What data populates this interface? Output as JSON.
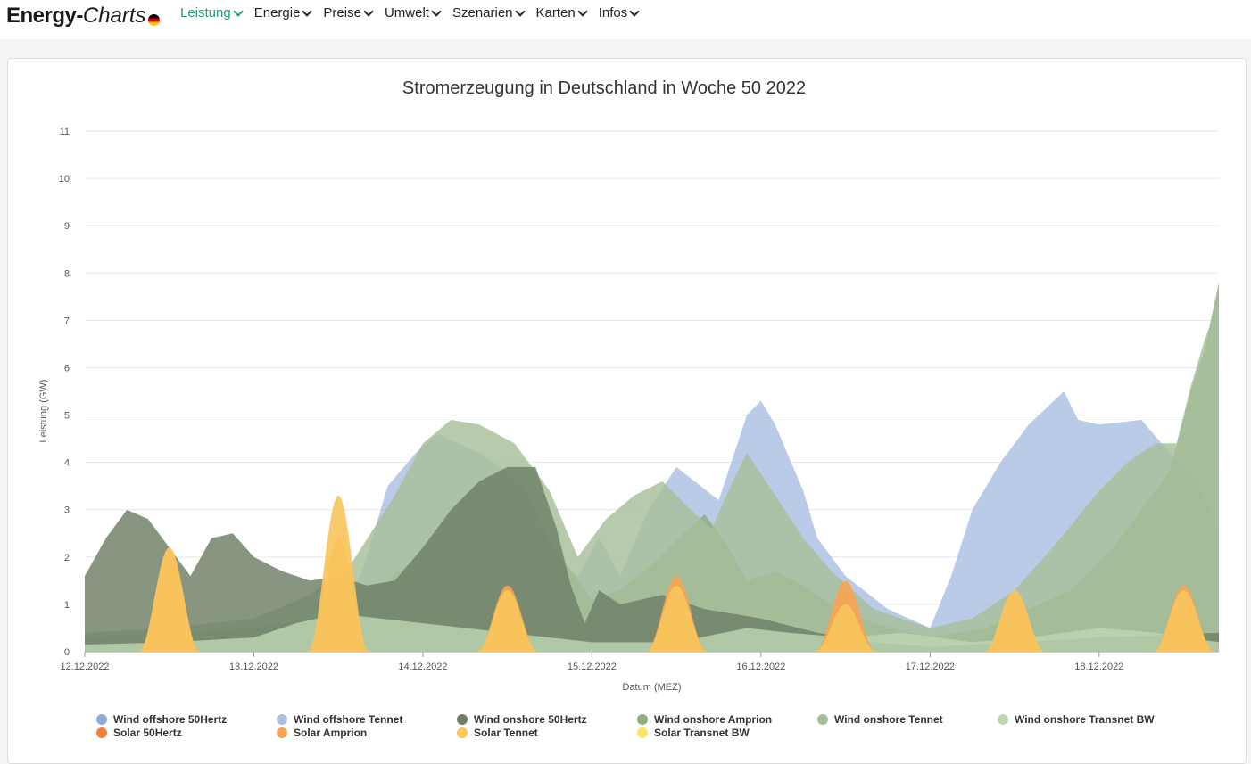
{
  "header": {
    "logo_part1": "Energy-",
    "logo_part2": "Charts",
    "nav": [
      {
        "label": "Leistung",
        "active": true
      },
      {
        "label": "Energie",
        "active": false
      },
      {
        "label": "Preise",
        "active": false
      },
      {
        "label": "Umwelt",
        "active": false
      },
      {
        "label": "Szenarien",
        "active": false
      },
      {
        "label": "Karten",
        "active": false
      },
      {
        "label": "Infos",
        "active": false
      }
    ]
  },
  "chart_data": {
    "type": "area",
    "title": "Stromerzeugung in Deutschland in Woche 50 2022",
    "xlabel": "Datum (MEZ)",
    "ylabel": "Leistung (GW)",
    "ylim": [
      0,
      11
    ],
    "yticks": [
      0,
      1,
      2,
      3,
      4,
      5,
      6,
      7,
      8,
      9,
      10,
      11
    ],
    "xlim": [
      "12.12.2022 00:00",
      "18.12.2022 17:00"
    ],
    "xticks": [
      "12.12.2022",
      "13.12.2022",
      "14.12.2022",
      "15.12.2022",
      "16.12.2022",
      "17.12.2022",
      "18.12.2022"
    ],
    "grid": true,
    "legend_position": "bottom",
    "series": [
      {
        "name": "Wind offshore 50Hertz",
        "color": "#8fabdc",
        "legend_only": true,
        "points": []
      },
      {
        "name": "Wind offshore Tennet",
        "color": "#a9c0e0",
        "points": [
          [
            "12.12.2022 00:00",
            0
          ],
          [
            "13.12.2022 12:00",
            0.3
          ],
          [
            "13.12.2022 16:00",
            2.0
          ],
          [
            "13.12.2022 19:00",
            3.5
          ],
          [
            "13.12.2022 23:00",
            4.2
          ],
          [
            "14.12.2022 02:00",
            4.6
          ],
          [
            "14.12.2022 08:00",
            4.2
          ],
          [
            "14.12.2022 14:00",
            3.6
          ],
          [
            "14.12.2022 19:00",
            2.0
          ],
          [
            "14.12.2022 22:00",
            1.6
          ],
          [
            "15.12.2022 01:00",
            2.4
          ],
          [
            "15.12.2022 04:00",
            1.6
          ],
          [
            "15.12.2022 08:00",
            3.0
          ],
          [
            "15.12.2022 12:00",
            3.9
          ],
          [
            "15.12.2022 18:00",
            3.2
          ],
          [
            "15.12.2022 20:00",
            4.1
          ],
          [
            "15.12.2022 22:00",
            5.0
          ],
          [
            "16.12.2022 00:00",
            5.3
          ],
          [
            "16.12.2022 02:00",
            4.8
          ],
          [
            "16.12.2022 06:00",
            3.4
          ],
          [
            "16.12.2022 08:00",
            2.4
          ],
          [
            "16.12.2022 12:00",
            1.6
          ],
          [
            "16.12.2022 18:00",
            0.9
          ],
          [
            "17.12.2022 00:00",
            0.5
          ],
          [
            "17.12.2022 03:00",
            1.6
          ],
          [
            "17.12.2022 06:00",
            3.0
          ],
          [
            "17.12.2022 10:00",
            4.0
          ],
          [
            "17.12.2022 14:00",
            4.8
          ],
          [
            "17.12.2022 19:00",
            5.5
          ],
          [
            "17.12.2022 21:00",
            4.9
          ],
          [
            "18.12.2022 00:00",
            4.8
          ],
          [
            "18.12.2022 06:00",
            4.9
          ],
          [
            "18.12.2022 10:00",
            4.2
          ],
          [
            "18.12.2022 14:00",
            3.6
          ],
          [
            "18.12.2022 17:00",
            2.6
          ]
        ]
      },
      {
        "name": "Wind onshore 50Hertz",
        "color": "#6e7f65",
        "points": [
          [
            "12.12.2022 00:00",
            1.6
          ],
          [
            "12.12.2022 03:00",
            2.4
          ],
          [
            "12.12.2022 06:00",
            3.0
          ],
          [
            "12.12.2022 09:00",
            2.8
          ],
          [
            "12.12.2022 12:00",
            2.2
          ],
          [
            "12.12.2022 15:00",
            1.6
          ],
          [
            "12.12.2022 18:00",
            2.4
          ],
          [
            "12.12.2022 21:00",
            2.5
          ],
          [
            "13.12.2022 00:00",
            2.0
          ],
          [
            "13.12.2022 04:00",
            1.7
          ],
          [
            "13.12.2022 08:00",
            1.5
          ],
          [
            "13.12.2022 12:00",
            1.6
          ],
          [
            "13.12.2022 16:00",
            1.4
          ],
          [
            "13.12.2022 20:00",
            1.5
          ],
          [
            "14.12.2022 00:00",
            2.2
          ],
          [
            "14.12.2022 04:00",
            3.0
          ],
          [
            "14.12.2022 08:00",
            3.6
          ],
          [
            "14.12.2022 12:00",
            3.9
          ],
          [
            "14.12.2022 16:00",
            3.9
          ],
          [
            "14.12.2022 19:00",
            2.6
          ],
          [
            "14.12.2022 21:00",
            1.4
          ],
          [
            "14.12.2022 23:00",
            0.6
          ],
          [
            "15.12.2022 01:00",
            1.3
          ],
          [
            "15.12.2022 04:00",
            1.0
          ],
          [
            "15.12.2022 10:00",
            1.2
          ],
          [
            "15.12.2022 16:00",
            0.9
          ],
          [
            "16.12.2022 00:00",
            0.7
          ],
          [
            "16.12.2022 08:00",
            0.4
          ],
          [
            "16.12.2022 16:00",
            0.2
          ],
          [
            "17.12.2022 00:00",
            0.1
          ],
          [
            "17.12.2022 12:00",
            0.2
          ],
          [
            "18.12.2022 00:00",
            0.3
          ],
          [
            "18.12.2022 17:00",
            0.4
          ]
        ]
      },
      {
        "name": "Wind onshore Amprion",
        "color": "#8fac82",
        "points": [
          [
            "12.12.2022 00:00",
            0.3
          ],
          [
            "12.12.2022 12:00",
            0.4
          ],
          [
            "13.12.2022 00:00",
            0.5
          ],
          [
            "13.12.2022 12:00",
            0.8
          ],
          [
            "13.12.2022 18:00",
            1.4
          ],
          [
            "14.12.2022 00:00",
            2.1
          ],
          [
            "14.12.2022 05:00",
            2.6
          ],
          [
            "14.12.2022 10:00",
            2.9
          ],
          [
            "14.12.2022 16:00",
            2.7
          ],
          [
            "14.12.2022 20:00",
            1.9
          ],
          [
            "15.12.2022 00:00",
            1.1
          ],
          [
            "15.12.2022 04:00",
            1.3
          ],
          [
            "15.12.2022 09:00",
            1.9
          ],
          [
            "15.12.2022 13:00",
            2.5
          ],
          [
            "15.12.2022 16:00",
            2.9
          ],
          [
            "15.12.2022 19:00",
            2.3
          ],
          [
            "15.12.2022 22:00",
            1.5
          ],
          [
            "16.12.2022 02:00",
            1.7
          ],
          [
            "16.12.2022 06:00",
            1.4
          ],
          [
            "16.12.2022 10:00",
            1.0
          ],
          [
            "16.12.2022 16:00",
            0.6
          ],
          [
            "17.12.2022 00:00",
            0.3
          ],
          [
            "17.12.2022 08:00",
            0.5
          ],
          [
            "17.12.2022 14:00",
            0.9
          ],
          [
            "17.12.2022 20:00",
            1.3
          ],
          [
            "18.12.2022 02:00",
            2.2
          ],
          [
            "18.12.2022 06:00",
            3.0
          ],
          [
            "18.12.2022 10:00",
            3.8
          ],
          [
            "18.12.2022 13:00",
            5.5
          ],
          [
            "18.12.2022 15:00",
            6.4
          ],
          [
            "18.12.2022 17:00",
            7.8
          ]
        ]
      },
      {
        "name": "Wind onshore Tennet",
        "color": "#a8be9a",
        "points": [
          [
            "12.12.2022 00:00",
            0.4
          ],
          [
            "12.12.2022 12:00",
            0.5
          ],
          [
            "13.12.2022 00:00",
            0.7
          ],
          [
            "13.12.2022 08:00",
            1.2
          ],
          [
            "13.12.2022 14:00",
            1.9
          ],
          [
            "13.12.2022 20:00",
            3.3
          ],
          [
            "14.12.2022 00:00",
            4.4
          ],
          [
            "14.12.2022 04:00",
            4.9
          ],
          [
            "14.12.2022 08:00",
            4.8
          ],
          [
            "14.12.2022 13:00",
            4.4
          ],
          [
            "14.12.2022 18:00",
            3.4
          ],
          [
            "14.12.2022 22:00",
            2.0
          ],
          [
            "15.12.2022 02:00",
            2.8
          ],
          [
            "15.12.2022 06:00",
            3.3
          ],
          [
            "15.12.2022 10:00",
            3.6
          ],
          [
            "15.12.2022 14:00",
            3.0
          ],
          [
            "15.12.2022 17:00",
            2.6
          ],
          [
            "15.12.2022 20:00",
            3.6
          ],
          [
            "15.12.2022 22:00",
            4.2
          ],
          [
            "16.12.2022 02:00",
            3.3
          ],
          [
            "16.12.2022 06:00",
            2.4
          ],
          [
            "16.12.2022 10:00",
            1.7
          ],
          [
            "16.12.2022 16:00",
            0.9
          ],
          [
            "17.12.2022 00:00",
            0.5
          ],
          [
            "17.12.2022 06:00",
            0.7
          ],
          [
            "17.12.2022 12:00",
            1.3
          ],
          [
            "17.12.2022 18:00",
            2.3
          ],
          [
            "18.12.2022 00:00",
            3.4
          ],
          [
            "18.12.2022 04:00",
            4.0
          ],
          [
            "18.12.2022 08:00",
            4.4
          ],
          [
            "18.12.2022 11:00",
            4.4
          ],
          [
            "18.12.2022 13:00",
            5.6
          ],
          [
            "18.12.2022 15:00",
            6.6
          ],
          [
            "18.12.2022 17:00",
            7.4
          ]
        ]
      },
      {
        "name": "Wind onshore Transnet BW",
        "color": "#bdd6b2",
        "points": [
          [
            "12.12.2022 00:00",
            0.15
          ],
          [
            "12.12.2022 12:00",
            0.2
          ],
          [
            "13.12.2022 00:00",
            0.3
          ],
          [
            "13.12.2022 06:00",
            0.6
          ],
          [
            "13.12.2022 12:00",
            0.8
          ],
          [
            "13.12.2022 18:00",
            0.7
          ],
          [
            "14.12.2022 00:00",
            0.6
          ],
          [
            "14.12.2022 12:00",
            0.4
          ],
          [
            "15.12.2022 00:00",
            0.2
          ],
          [
            "15.12.2022 12:00",
            0.2
          ],
          [
            "15.12.2022 22:00",
            0.5
          ],
          [
            "16.12.2022 04:00",
            0.4
          ],
          [
            "16.12.2022 12:00",
            0.3
          ],
          [
            "16.12.2022 20:00",
            0.4
          ],
          [
            "17.12.2022 06:00",
            0.2
          ],
          [
            "17.12.2022 14:00",
            0.3
          ],
          [
            "18.12.2022 00:00",
            0.5
          ],
          [
            "18.12.2022 08:00",
            0.4
          ],
          [
            "18.12.2022 17:00",
            0.2
          ]
        ]
      },
      {
        "name": "Solar 50Hertz",
        "color": "#f47f3b",
        "peaks": [
          [
            "12.12.2022",
            0.0
          ],
          [
            "13.12.2022",
            0.0
          ],
          [
            "14.12.2022",
            0.0
          ],
          [
            "15.12.2022",
            0.0
          ],
          [
            "16.12.2022",
            0.0
          ],
          [
            "17.12.2022",
            0.0
          ],
          [
            "18.12.2022",
            0.0
          ]
        ]
      },
      {
        "name": "Solar Amprion",
        "color": "#f6a552",
        "peaks": [
          [
            "12.12.2022",
            2.2
          ],
          [
            "13.12.2022",
            2.4
          ],
          [
            "14.12.2022",
            1.4
          ],
          [
            "15.12.2022",
            1.6
          ],
          [
            "16.12.2022",
            1.5
          ],
          [
            "17.12.2022",
            1.2
          ],
          [
            "18.12.2022",
            1.4
          ]
        ]
      },
      {
        "name": "Solar Tennet",
        "color": "#f9c65c",
        "peaks": [
          [
            "12.12.2022",
            2.2
          ],
          [
            "13.12.2022",
            3.3
          ],
          [
            "14.12.2022",
            1.3
          ],
          [
            "15.12.2022",
            1.4
          ],
          [
            "16.12.2022",
            1.0
          ],
          [
            "17.12.2022",
            1.3
          ],
          [
            "18.12.2022",
            1.3
          ]
        ]
      },
      {
        "name": "Solar Transnet BW",
        "color": "#fbe46a",
        "peaks": [
          [
            "12.12.2022",
            1.2
          ],
          [
            "13.12.2022",
            1.1
          ],
          [
            "14.12.2022",
            0.1
          ],
          [
            "15.12.2022",
            0.15
          ],
          [
            "16.12.2022",
            0.1
          ],
          [
            "17.12.2022",
            0.3
          ],
          [
            "18.12.2022",
            0.25
          ]
        ]
      }
    ]
  }
}
